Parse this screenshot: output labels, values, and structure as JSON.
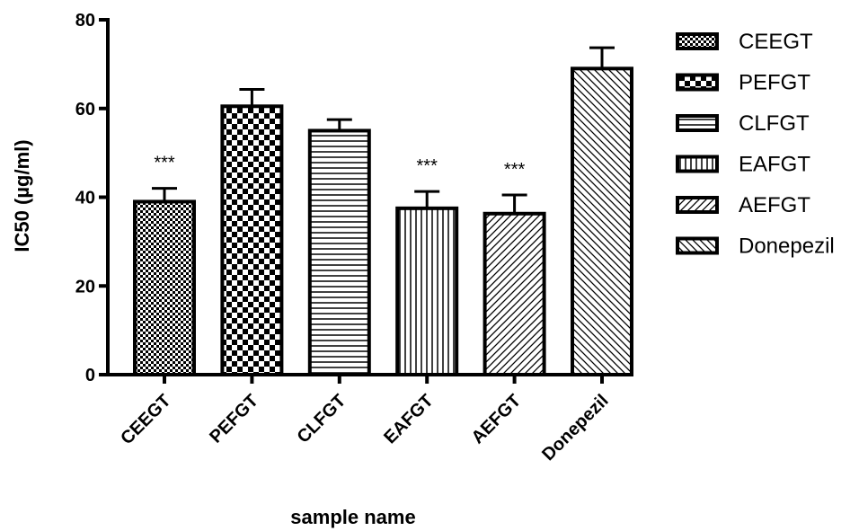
{
  "chart_data": {
    "type": "bar",
    "title": "",
    "xlabel": "sample name",
    "ylabel": "IC50 (µg/ml)",
    "ylim": [
      0,
      80
    ],
    "yticks": [
      0,
      20,
      40,
      60,
      80
    ],
    "categories": [
      "CEEGT",
      "PEFGT",
      "CLFGT",
      "EAFGT",
      "AEFGT",
      "Donepezil"
    ],
    "values": [
      39,
      60.5,
      55,
      37.5,
      36.3,
      69
    ],
    "errors": [
      3,
      3.8,
      2.5,
      3.8,
      4.2,
      4.7
    ],
    "significance": [
      "***",
      "",
      "",
      "***",
      "***",
      ""
    ],
    "patterns": [
      "fine-check",
      "checkerboard",
      "horizontal-lines",
      "vertical-lines",
      "diagonal-up",
      "diagonal-down"
    ],
    "grid": false,
    "legend": {
      "placement": "right",
      "entries": [
        "CEEGT",
        "PEFGT",
        "CLFGT",
        "EAFGT",
        "AEFGT",
        "Donepezil"
      ]
    }
  }
}
